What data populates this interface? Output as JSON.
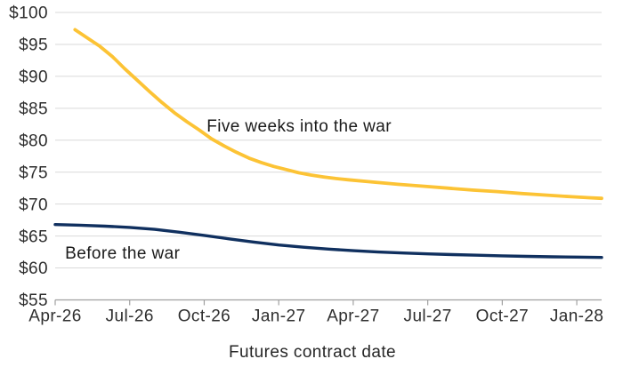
{
  "colors": {
    "background": "#ffffff",
    "gridline": "#d9d9d9",
    "axis": "#a0a0a0",
    "tick_label_text": "#2e2e2e",
    "annotation_text": "#1a1a1a",
    "series_war": "#fcc335",
    "series_before": "#10305f"
  },
  "chart_data": {
    "type": "line",
    "xlabel": "Futures contract date",
    "ylabel": "",
    "grid": "horizontal",
    "legend": "inline-annotations",
    "ylim": [
      55,
      100
    ],
    "xlim_months": [
      0,
      22
    ],
    "y_tick_values": [
      55,
      60,
      65,
      70,
      75,
      80,
      85,
      90,
      95,
      100
    ],
    "y_tick_labels": [
      "$55",
      "$60",
      "$65",
      "$70",
      "$75",
      "$80",
      "$85",
      "$90",
      "$95",
      "$100"
    ],
    "x_tick_positions_months": [
      0,
      3,
      6,
      9,
      12,
      15,
      18,
      21
    ],
    "x_tick_labels": [
      "Apr-26",
      "Jul-26",
      "Oct-26",
      "Jan-27",
      "Apr-27",
      "Jul-27",
      "Oct-27",
      "Jan-28"
    ],
    "series": [
      {
        "name": "Five weeks into the war",
        "color": "#fcc335",
        "stroke_width": 3.8,
        "points_month_price": [
          [
            0.8,
            97.3
          ],
          [
            1.3,
            96.0
          ],
          [
            1.8,
            94.7
          ],
          [
            2.3,
            93.1
          ],
          [
            2.8,
            91.2
          ],
          [
            3.3,
            89.4
          ],
          [
            3.8,
            87.6
          ],
          [
            4.3,
            85.9
          ],
          [
            4.8,
            84.3
          ],
          [
            5.3,
            82.9
          ],
          [
            5.8,
            81.6
          ],
          [
            6.3,
            80.2
          ],
          [
            6.8,
            79.1
          ],
          [
            7.3,
            78.1
          ],
          [
            7.8,
            77.2
          ],
          [
            8.3,
            76.5
          ],
          [
            8.8,
            75.9
          ],
          [
            9.3,
            75.4
          ],
          [
            9.8,
            74.9
          ],
          [
            10.3,
            74.55
          ],
          [
            10.8,
            74.25
          ],
          [
            11.3,
            74.0
          ],
          [
            11.8,
            73.8
          ],
          [
            12.8,
            73.45
          ],
          [
            13.8,
            73.1
          ],
          [
            14.8,
            72.8
          ],
          [
            15.8,
            72.5
          ],
          [
            16.8,
            72.2
          ],
          [
            17.8,
            71.95
          ],
          [
            18.8,
            71.65
          ],
          [
            19.8,
            71.4
          ],
          [
            20.8,
            71.15
          ],
          [
            21.5,
            71.0
          ],
          [
            22,
            70.9
          ]
        ]
      },
      {
        "name": "Before the war",
        "color": "#10305f",
        "stroke_width": 3.4,
        "points_month_price": [
          [
            0,
            66.8
          ],
          [
            1,
            66.7
          ],
          [
            2,
            66.55
          ],
          [
            3,
            66.35
          ],
          [
            4,
            66.05
          ],
          [
            5,
            65.6
          ],
          [
            6,
            65.1
          ],
          [
            7,
            64.55
          ],
          [
            8,
            64.05
          ],
          [
            9,
            63.6
          ],
          [
            10,
            63.25
          ],
          [
            11,
            62.95
          ],
          [
            12,
            62.7
          ],
          [
            13,
            62.5
          ],
          [
            14,
            62.35
          ],
          [
            15,
            62.2
          ],
          [
            16,
            62.1
          ],
          [
            17,
            62.0
          ],
          [
            18,
            61.9
          ],
          [
            19,
            61.82
          ],
          [
            20,
            61.75
          ],
          [
            21,
            61.7
          ],
          [
            22,
            61.65
          ]
        ]
      }
    ],
    "annotations": [
      {
        "text": "Five weeks into the war",
        "month": 6.1,
        "price": 82.3,
        "anchor": "start"
      },
      {
        "text": "Before the war",
        "month": 0.4,
        "price": 62.4,
        "anchor": "start"
      }
    ]
  }
}
